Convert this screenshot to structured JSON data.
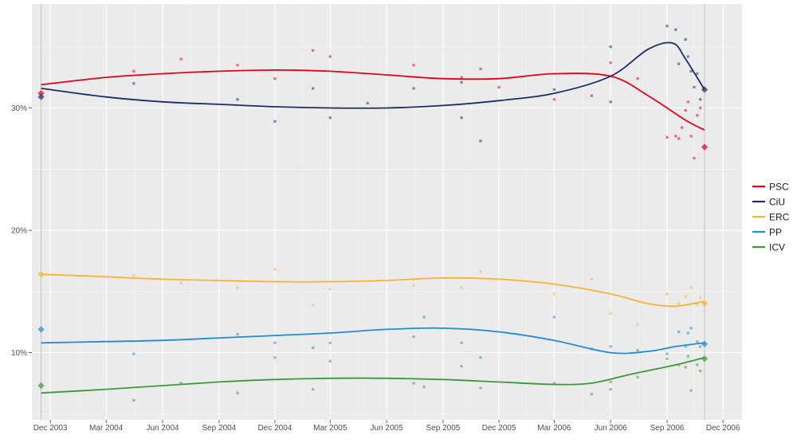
{
  "chart_data": {
    "type": "line",
    "title": "",
    "xlabel": "",
    "ylabel": "",
    "x_range": [
      "2003-11-01",
      "2007-01-01"
    ],
    "y_range": [
      4.5,
      38.5
    ],
    "grid": true,
    "legend_position": "right",
    "x_ticks": [
      {
        "date": "2003-12-01",
        "label": "Dec 2003"
      },
      {
        "date": "2004-03-01",
        "label": "Mar 2004"
      },
      {
        "date": "2004-06-01",
        "label": "Jun 2004"
      },
      {
        "date": "2004-09-01",
        "label": "Sep 2004"
      },
      {
        "date": "2004-12-01",
        "label": "Dec 2004"
      },
      {
        "date": "2005-03-01",
        "label": "Mar 2005"
      },
      {
        "date": "2005-06-01",
        "label": "Jun 2005"
      },
      {
        "date": "2005-09-01",
        "label": "Sep 2005"
      },
      {
        "date": "2005-12-01",
        "label": "Dec 2005"
      },
      {
        "date": "2006-03-01",
        "label": "Mar 2006"
      },
      {
        "date": "2006-06-01",
        "label": "Jun 2006"
      },
      {
        "date": "2006-09-01",
        "label": "Sep 2006"
      },
      {
        "date": "2006-12-01",
        "label": "Dec 2006"
      }
    ],
    "y_ticks": [
      {
        "value": 10,
        "label": "10%"
      },
      {
        "value": 20,
        "label": "20%"
      },
      {
        "value": 30,
        "label": "30%"
      }
    ],
    "election_dates": [
      "2003-11-16",
      "2006-11-01"
    ],
    "series": [
      {
        "name": "PSC",
        "color": "#E3001B",
        "trend": [
          [
            "2003-11-16",
            31.9
          ],
          [
            "2004-03-01",
            32.5
          ],
          [
            "2004-06-01",
            32.8
          ],
          [
            "2004-09-01",
            33.0
          ],
          [
            "2004-12-01",
            33.1
          ],
          [
            "2005-03-01",
            33.0
          ],
          [
            "2005-06-01",
            32.7
          ],
          [
            "2005-09-01",
            32.4
          ],
          [
            "2005-12-01",
            32.4
          ],
          [
            "2006-03-01",
            32.8
          ],
          [
            "2006-06-01",
            32.6
          ],
          [
            "2006-08-01",
            31.0
          ],
          [
            "2006-10-01",
            29.0
          ],
          [
            "2006-11-01",
            28.2
          ]
        ],
        "polls": [
          [
            "2004-04-15",
            33.0
          ],
          [
            "2004-07-01",
            34.0
          ],
          [
            "2004-10-01",
            33.5
          ],
          [
            "2004-12-01",
            32.4
          ],
          [
            "2005-02-01",
            34.7
          ],
          [
            "2005-03-01",
            34.2
          ],
          [
            "2005-07-15",
            33.5
          ],
          [
            "2005-10-01",
            32.5
          ],
          [
            "2005-11-01",
            33.2
          ],
          [
            "2005-12-01",
            31.7
          ],
          [
            "2006-03-01",
            30.7
          ],
          [
            "2006-05-01",
            31.0
          ],
          [
            "2006-06-01",
            33.7
          ],
          [
            "2006-07-15",
            32.4
          ],
          [
            "2006-09-01",
            27.6
          ],
          [
            "2006-09-15",
            27.7
          ],
          [
            "2006-09-20",
            27.5
          ],
          [
            "2006-09-25",
            28.4
          ],
          [
            "2006-10-01",
            29.8
          ],
          [
            "2006-10-05",
            30.5
          ],
          [
            "2006-10-10",
            27.7
          ],
          [
            "2006-10-15",
            25.9
          ],
          [
            "2006-10-20",
            29.4
          ],
          [
            "2006-10-25",
            30.0
          ]
        ],
        "result": [
          "2003-11-16",
          31.2
        ],
        "result2": [
          "2006-11-01",
          26.8
        ]
      },
      {
        "name": "CiU",
        "color": "#1B2D65",
        "trend": [
          [
            "2003-11-16",
            31.6
          ],
          [
            "2004-03-01",
            30.9
          ],
          [
            "2004-06-01",
            30.5
          ],
          [
            "2004-09-01",
            30.3
          ],
          [
            "2004-12-01",
            30.1
          ],
          [
            "2005-03-01",
            30.0
          ],
          [
            "2005-06-01",
            30.0
          ],
          [
            "2005-09-01",
            30.2
          ],
          [
            "2005-12-01",
            30.6
          ],
          [
            "2006-03-01",
            31.2
          ],
          [
            "2006-06-01",
            32.6
          ],
          [
            "2006-08-01",
            34.8
          ],
          [
            "2006-09-10",
            35.3
          ],
          [
            "2006-10-01",
            34.0
          ],
          [
            "2006-11-01",
            31.5
          ]
        ],
        "polls": [
          [
            "2004-04-15",
            32.0
          ],
          [
            "2004-10-01",
            30.7
          ],
          [
            "2004-12-01",
            28.9
          ],
          [
            "2005-02-01",
            31.6
          ],
          [
            "2005-03-01",
            29.2
          ],
          [
            "2005-05-01",
            30.4
          ],
          [
            "2005-07-15",
            31.6
          ],
          [
            "2005-10-01",
            32.1
          ],
          [
            "2005-10-01",
            29.2
          ],
          [
            "2005-11-01",
            27.3
          ],
          [
            "2006-03-01",
            31.5
          ],
          [
            "2006-06-01",
            35.0
          ],
          [
            "2006-06-01",
            30.5
          ],
          [
            "2006-09-01",
            36.7
          ],
          [
            "2006-09-15",
            36.4
          ],
          [
            "2006-09-20",
            33.6
          ],
          [
            "2006-10-01",
            35.6
          ],
          [
            "2006-10-05",
            34.2
          ],
          [
            "2006-10-10",
            33.0
          ],
          [
            "2006-10-15",
            31.7
          ],
          [
            "2006-10-20",
            32.8
          ],
          [
            "2006-10-25",
            30.7
          ]
        ],
        "result": [
          "2003-11-16",
          30.9
        ],
        "result2": [
          "2006-11-01",
          31.5
        ]
      },
      {
        "name": "ERC",
        "color": "#FFB232",
        "trend": [
          [
            "2003-11-16",
            16.4
          ],
          [
            "2004-03-01",
            16.2
          ],
          [
            "2004-06-01",
            16.0
          ],
          [
            "2004-09-01",
            15.9
          ],
          [
            "2004-12-01",
            15.8
          ],
          [
            "2005-03-01",
            15.8
          ],
          [
            "2005-06-01",
            15.9
          ],
          [
            "2005-09-01",
            16.1
          ],
          [
            "2005-12-01",
            16.0
          ],
          [
            "2006-03-01",
            15.6
          ],
          [
            "2006-06-01",
            14.8
          ],
          [
            "2006-08-01",
            14.0
          ],
          [
            "2006-09-15",
            13.8
          ],
          [
            "2006-11-01",
            14.2
          ]
        ],
        "polls": [
          [
            "2004-04-15",
            16.3
          ],
          [
            "2004-07-01",
            15.7
          ],
          [
            "2004-10-01",
            15.3
          ],
          [
            "2004-12-01",
            16.8
          ],
          [
            "2005-02-01",
            13.9
          ],
          [
            "2005-03-01",
            15.2
          ],
          [
            "2005-07-15",
            15.5
          ],
          [
            "2005-10-01",
            15.3
          ],
          [
            "2005-11-01",
            16.6
          ],
          [
            "2006-03-01",
            14.8
          ],
          [
            "2006-05-01",
            16.0
          ],
          [
            "2006-06-01",
            13.2
          ],
          [
            "2006-07-15",
            12.3
          ],
          [
            "2006-09-01",
            14.8
          ],
          [
            "2006-09-20",
            14.0
          ],
          [
            "2006-10-01",
            14.6
          ],
          [
            "2006-10-10",
            15.3
          ],
          [
            "2006-10-20",
            13.9
          ],
          [
            "2006-10-25",
            14.5
          ]
        ],
        "result": [
          "2003-11-16",
          16.4
        ],
        "result2": [
          "2006-11-01",
          14.0
        ]
      },
      {
        "name": "PP",
        "color": "#1F8CD6",
        "trend": [
          [
            "2003-11-16",
            10.8
          ],
          [
            "2004-03-01",
            10.9
          ],
          [
            "2004-06-01",
            11.0
          ],
          [
            "2004-09-01",
            11.2
          ],
          [
            "2004-12-01",
            11.4
          ],
          [
            "2005-03-01",
            11.6
          ],
          [
            "2005-06-01",
            11.9
          ],
          [
            "2005-09-01",
            12.0
          ],
          [
            "2005-12-01",
            11.7
          ],
          [
            "2006-03-01",
            11.0
          ],
          [
            "2006-06-01",
            10.0
          ],
          [
            "2006-08-01",
            10.1
          ],
          [
            "2006-09-15",
            10.5
          ],
          [
            "2006-11-01",
            10.8
          ]
        ],
        "polls": [
          [
            "2004-04-15",
            9.9
          ],
          [
            "2004-10-01",
            11.5
          ],
          [
            "2004-12-01",
            10.8
          ],
          [
            "2005-02-01",
            10.4
          ],
          [
            "2005-03-01",
            10.8
          ],
          [
            "2005-07-15",
            11.3
          ],
          [
            "2005-08-01",
            12.9
          ],
          [
            "2005-10-01",
            10.8
          ],
          [
            "2005-11-01",
            9.6
          ],
          [
            "2006-03-01",
            12.9
          ],
          [
            "2006-05-01",
            10.3
          ],
          [
            "2006-06-01",
            10.5
          ],
          [
            "2006-07-15",
            10.2
          ],
          [
            "2006-09-01",
            9.9
          ],
          [
            "2006-09-20",
            11.7
          ],
          [
            "2006-10-01",
            10.5
          ],
          [
            "2006-10-05",
            11.6
          ],
          [
            "2006-10-10",
            12.0
          ],
          [
            "2006-10-20",
            10.9
          ],
          [
            "2006-10-25",
            10.5
          ]
        ],
        "result": [
          "2003-11-16",
          11.9
        ],
        "result2": [
          "2006-11-01",
          10.7
        ]
      },
      {
        "name": "ICV",
        "color": "#3C9A3C",
        "trend": [
          [
            "2003-11-16",
            6.7
          ],
          [
            "2004-03-01",
            7.0
          ],
          [
            "2004-06-01",
            7.3
          ],
          [
            "2004-09-01",
            7.6
          ],
          [
            "2004-12-01",
            7.8
          ],
          [
            "2005-03-01",
            7.9
          ],
          [
            "2005-06-01",
            7.9
          ],
          [
            "2005-09-01",
            7.8
          ],
          [
            "2005-12-01",
            7.6
          ],
          [
            "2006-03-01",
            7.4
          ],
          [
            "2006-05-01",
            7.5
          ],
          [
            "2006-07-01",
            8.2
          ],
          [
            "2006-09-15",
            9.0
          ],
          [
            "2006-11-01",
            9.6
          ]
        ],
        "polls": [
          [
            "2004-04-15",
            6.1
          ],
          [
            "2004-07-01",
            7.5
          ],
          [
            "2004-10-01",
            6.7
          ],
          [
            "2004-12-01",
            9.6
          ],
          [
            "2005-02-01",
            7.0
          ],
          [
            "2005-03-01",
            9.3
          ],
          [
            "2005-07-15",
            7.5
          ],
          [
            "2005-08-01",
            7.2
          ],
          [
            "2005-10-01",
            8.9
          ],
          [
            "2005-11-01",
            7.1
          ],
          [
            "2006-03-01",
            7.5
          ],
          [
            "2006-05-01",
            6.6
          ],
          [
            "2006-06-01",
            7.6
          ],
          [
            "2006-06-01",
            7.0
          ],
          [
            "2006-07-15",
            8.0
          ],
          [
            "2006-09-01",
            9.5
          ],
          [
            "2006-09-20",
            9.0
          ],
          [
            "2006-10-01",
            8.8
          ],
          [
            "2006-10-05",
            9.7
          ],
          [
            "2006-10-10",
            6.9
          ],
          [
            "2006-10-20",
            9.0
          ],
          [
            "2006-10-25",
            8.5
          ]
        ],
        "result": [
          "2003-11-16",
          7.3
        ],
        "result2": [
          "2006-11-01",
          9.5
        ]
      }
    ]
  }
}
